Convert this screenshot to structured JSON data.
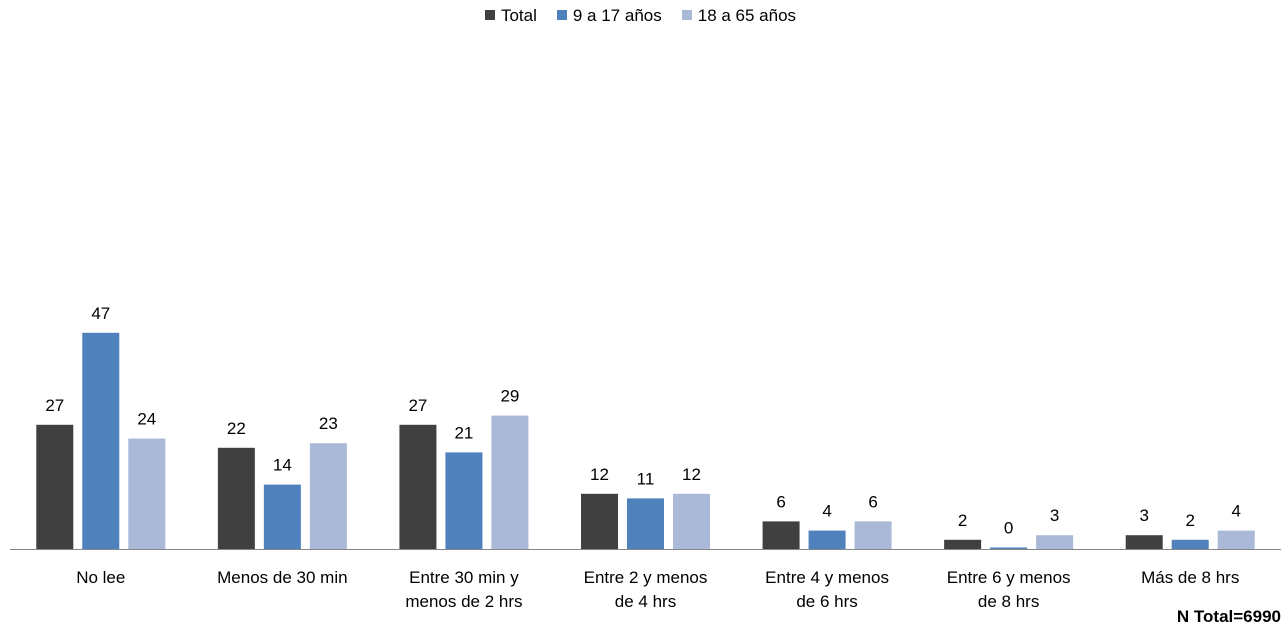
{
  "chart_data": {
    "type": "bar",
    "categories": [
      [
        "No lee"
      ],
      [
        "Menos de 30 min"
      ],
      [
        "Entre 30 min y",
        "menos de 2 hrs"
      ],
      [
        "Entre 2 y menos",
        "de 4 hrs"
      ],
      [
        "Entre 4 y menos",
        "de 6 hrs"
      ],
      [
        "Entre 6 y menos",
        "de 8 hrs"
      ],
      [
        "Más de 8 hrs"
      ]
    ],
    "series": [
      {
        "name": "Total",
        "color": "#404040",
        "values": [
          27,
          22,
          27,
          12,
          6,
          2,
          3
        ]
      },
      {
        "name": "9 a 17 años",
        "color": "#4f81bd",
        "values": [
          47,
          14,
          21,
          11,
          4,
          0,
          2
        ]
      },
      {
        "name": "18 a 65 años",
        "color": "#a9b9d7",
        "values": [
          24,
          23,
          29,
          12,
          6,
          3,
          4
        ]
      }
    ],
    "legend_position": "top-center",
    "grid": false,
    "ylim": [
      0,
      100
    ],
    "data_labels": true
  },
  "footnote": "N Total=6990"
}
